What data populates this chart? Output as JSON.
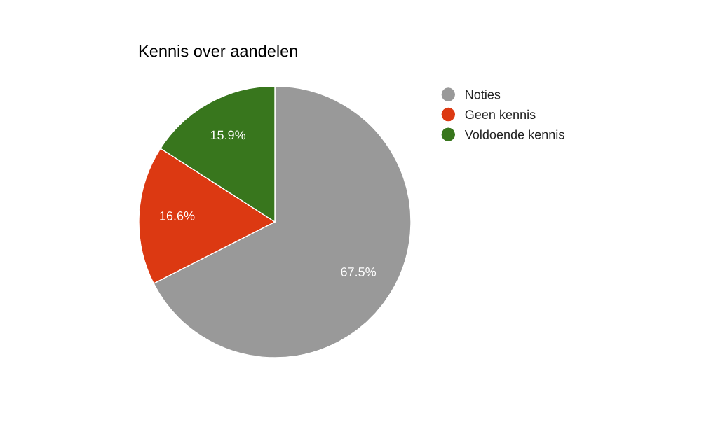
{
  "chart_data": {
    "type": "pie",
    "title": "Kennis over aandelen",
    "categories": [
      "Noties",
      "Geen kennis",
      "Voldoende kennis"
    ],
    "values": [
      67.5,
      16.6,
      15.9
    ],
    "colors": [
      "#999999",
      "#dc3912",
      "#38761d"
    ],
    "value_labels": [
      "67.5%",
      "16.6%",
      "15.9%"
    ],
    "legend": "right"
  }
}
